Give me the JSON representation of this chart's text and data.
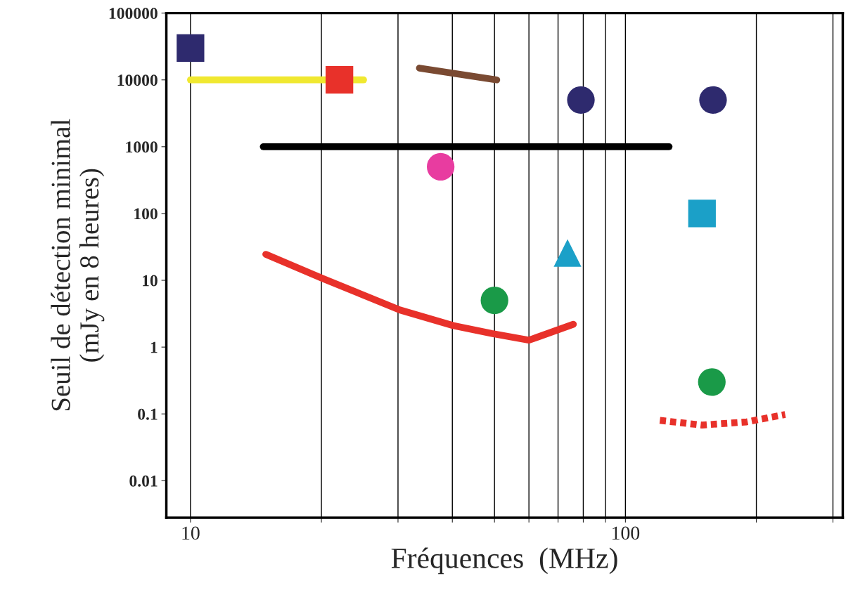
{
  "chart_data": {
    "type": "scatter",
    "xlabel": "Fréquences  (MHz)",
    "ylabel": "Seuil de détection minimal\n(mJy en 8 heures)",
    "log": "xy",
    "grid": "x",
    "xlim": [
      8.8,
      316
    ],
    "xticks": [
      10,
      {
        "value": 20,
        "label": null
      },
      {
        "value": 30,
        "label": null
      },
      {
        "value": 40,
        "label": null
      },
      {
        "value": 50,
        "label": null
      },
      {
        "value": 60,
        "label": null
      },
      {
        "value": 70,
        "label": null
      },
      {
        "value": 80,
        "label": null
      },
      {
        "value": 90,
        "label": null
      },
      100,
      {
        "value": 200,
        "label": null
      },
      {
        "value": 300,
        "label": null
      }
    ],
    "ylim": [
      0.0028,
      100000
    ],
    "yticks": [
      0.01,
      0.1,
      1,
      10,
      100,
      1000,
      10000,
      100000
    ],
    "series": [
      {
        "type": "line",
        "color": "#f0e830",
        "x": [
          10,
          25
        ],
        "values": [
          10000,
          10000
        ],
        "line_style": "solid",
        "marker": "none"
      },
      {
        "type": "line",
        "color": "#7a4a32",
        "x": [
          33.6,
          50.6
        ],
        "values": [
          15000,
          10000
        ],
        "line_style": "solid",
        "marker": "none"
      },
      {
        "type": "line",
        "color": "#000000",
        "x": [
          14.7,
          126
        ],
        "values": [
          1000,
          1000
        ],
        "line_style": "solid",
        "marker": "none"
      },
      {
        "type": "line",
        "color": "#e8312a",
        "x": [
          14.9,
          20.1,
          30.3,
          40.2,
          49.3,
          60,
          75.9
        ],
        "values": [
          24.5,
          10.7,
          3.6,
          2.1,
          1.6,
          1.27,
          2.2
        ],
        "line_style": "solid",
        "marker": "none"
      },
      {
        "type": "line",
        "color": "#e8312a",
        "x": [
          120,
          150,
          190,
          233
        ],
        "values": [
          0.08,
          0.068,
          0.076,
          0.098
        ],
        "line_style": "dotted",
        "marker": "none"
      },
      {
        "color": "#2e2a6e",
        "x": [
          10
        ],
        "values": [
          30000
        ],
        "marker": "square"
      },
      {
        "color": "#e8312a",
        "x": [
          22
        ],
        "values": [
          10000
        ],
        "marker": "square"
      },
      {
        "color": "#2e2a6e",
        "x": [
          79,
          159
        ],
        "values": [
          5000,
          5000
        ],
        "marker": "circle"
      },
      {
        "color": "#e83ca0",
        "x": [
          37.6
        ],
        "values": [
          500
        ],
        "marker": "circle"
      },
      {
        "color": "#1ba0c8",
        "x": [
          150
        ],
        "values": [
          100
        ],
        "marker": "square"
      },
      {
        "color": "#1ba0c8",
        "x": [
          73.6
        ],
        "values": [
          25.7
        ],
        "marker": "triangle"
      },
      {
        "color": "#1a9a48",
        "x": [
          50,
          158
        ],
        "values": [
          5,
          0.3
        ],
        "marker": "circle"
      }
    ]
  }
}
